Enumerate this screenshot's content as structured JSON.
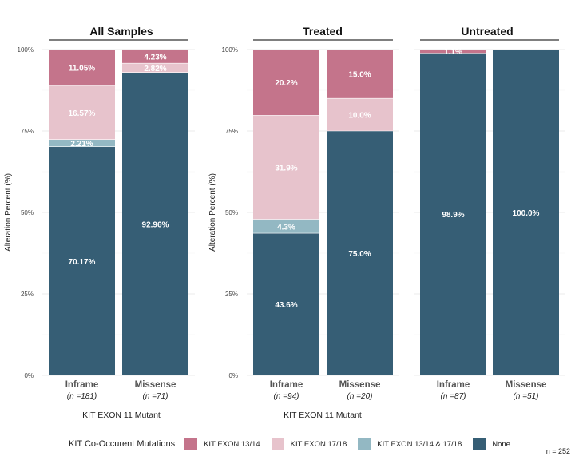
{
  "colors": {
    "KIT EXON 13/14": "#c4748b",
    "KIT EXON 17/18": "#e7c3cc",
    "KIT EXON 13/14 & 17/18": "#93b8c3",
    "None": "#365e75"
  },
  "legend": {
    "title": "KIT Co-Occurent Mutations",
    "items": [
      "KIT EXON 13/14",
      "KIT EXON 17/18",
      "KIT EXON 13/14 & 17/18",
      "None"
    ]
  },
  "footnote": "n = 252",
  "chart_data": [
    {
      "type": "bar",
      "stacked": true,
      "title": "All Samples",
      "ylabel": "Alteration Percent (%)",
      "xlabel": "KIT EXON 11 Mutant",
      "ylim": [
        0,
        100
      ],
      "yticks": [
        "0%",
        "25%",
        "50%",
        "75%",
        "100%"
      ],
      "categories": [
        "Inframe",
        "Missense"
      ],
      "category_n": [
        "(n =181)",
        "(n =71)"
      ],
      "series": [
        {
          "name": "None",
          "values": [
            70.17,
            92.96
          ],
          "labels": [
            "70.17%",
            "92.96%"
          ]
        },
        {
          "name": "KIT EXON 13/14 & 17/18",
          "values": [
            2.21,
            0
          ],
          "labels": [
            "2.21%",
            ""
          ]
        },
        {
          "name": "KIT EXON 17/18",
          "values": [
            16.57,
            2.82
          ],
          "labels": [
            "16.57%",
            "2.82%"
          ]
        },
        {
          "name": "KIT EXON 13/14",
          "values": [
            11.05,
            4.23
          ],
          "labels": [
            "11.05%",
            "4.23%"
          ]
        }
      ]
    },
    {
      "type": "bar",
      "stacked": true,
      "title": "Treated",
      "ylabel": "Alteration Percent (%)",
      "xlabel": "KIT EXON 11 Mutant",
      "ylim": [
        0,
        100
      ],
      "yticks": [
        "0%",
        "25%",
        "50%",
        "75%",
        "100%"
      ],
      "categories": [
        "Inframe",
        "Missense"
      ],
      "category_n": [
        "(n =94)",
        "(n =20)"
      ],
      "series": [
        {
          "name": "None",
          "values": [
            43.6,
            75.0
          ],
          "labels": [
            "43.6%",
            "75.0%"
          ]
        },
        {
          "name": "KIT EXON 13/14 & 17/18",
          "values": [
            4.3,
            0
          ],
          "labels": [
            "4.3%",
            ""
          ]
        },
        {
          "name": "KIT EXON 17/18",
          "values": [
            31.9,
            10.0
          ],
          "labels": [
            "31.9%",
            "10.0%"
          ]
        },
        {
          "name": "KIT EXON 13/14",
          "values": [
            20.2,
            15.0
          ],
          "labels": [
            "20.2%",
            "15.0%"
          ]
        }
      ]
    },
    {
      "type": "bar",
      "stacked": true,
      "title": "Untreated",
      "ylabel": "",
      "xlabel": "",
      "ylim": [
        0,
        100
      ],
      "yticks": [],
      "categories": [
        "Inframe",
        "Missense"
      ],
      "category_n": [
        "(n =87)",
        "(n =51)"
      ],
      "series": [
        {
          "name": "None",
          "values": [
            98.9,
            100.0
          ],
          "labels": [
            "98.9%",
            "100.0%"
          ]
        },
        {
          "name": "KIT EXON 13/14 & 17/18",
          "values": [
            0,
            0
          ],
          "labels": [
            "",
            ""
          ]
        },
        {
          "name": "KIT EXON 17/18",
          "values": [
            0,
            0
          ],
          "labels": [
            "",
            ""
          ]
        },
        {
          "name": "KIT EXON 13/14",
          "values": [
            1.1,
            0
          ],
          "labels": [
            "1.1%",
            ""
          ]
        }
      ]
    }
  ]
}
